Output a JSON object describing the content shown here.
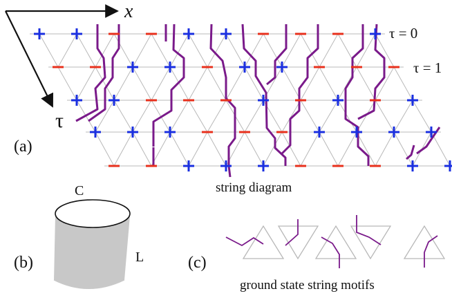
{
  "axes": {
    "x_label": "x",
    "tau_label": "τ",
    "tau0_label": "τ = 0",
    "tau1_label": "τ = 1"
  },
  "panels": {
    "a_label": "(a)",
    "b_label": "(b)",
    "c_label": "(c)"
  },
  "captions": {
    "string_diagram": "string diagram",
    "ground_state_motifs": "ground state string motifs"
  },
  "cylinder": {
    "top_label": "C",
    "side_label": "L"
  },
  "lattice": {
    "rows": [
      [
        "+",
        "+",
        "−",
        "−",
        "+",
        "+",
        "−",
        "−",
        "−",
        "+"
      ],
      [
        "−",
        "−",
        "+",
        "+",
        "−",
        "+",
        "+",
        "−",
        "−",
        "−"
      ],
      [
        "+",
        "+",
        "−",
        "−",
        "−",
        "+",
        "−",
        "+",
        "−",
        "+"
      ],
      [
        "+",
        "+",
        "+",
        "−",
        "−",
        "−",
        "+",
        "+",
        "+",
        "+"
      ],
      [
        "−",
        "−",
        "+",
        "+",
        "+",
        "−",
        "−",
        "−",
        "+",
        "+"
      ]
    ]
  },
  "colors": {
    "plus": "#1a2fe0",
    "minus": "#e8301c",
    "string": "#7a1a8a",
    "lattice": "#b8b8b8",
    "cylinder_fill": "#c8c8c8"
  }
}
